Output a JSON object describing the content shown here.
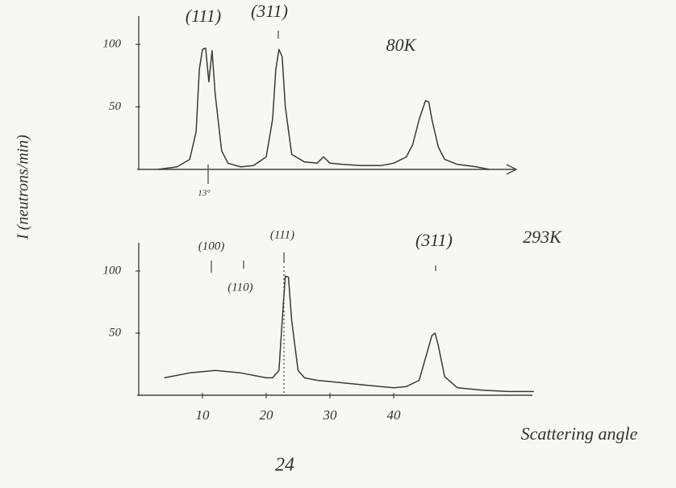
{
  "chart_data": [
    {
      "type": "line",
      "title": "80K",
      "ylabel": "I (neutrons/min)",
      "x": [
        3,
        6,
        8,
        9,
        9.5,
        10,
        10.5,
        11,
        11.5,
        12,
        13,
        14,
        16,
        18,
        20,
        21,
        21.5,
        22,
        22.5,
        23,
        24,
        26,
        28,
        29,
        30,
        32,
        35,
        38,
        40,
        42,
        43,
        44,
        45,
        45.5,
        46,
        47,
        48,
        50,
        53,
        55
      ],
      "values": [
        0,
        2,
        8,
        30,
        80,
        96,
        97,
        70,
        95,
        60,
        15,
        5,
        2,
        3,
        10,
        40,
        80,
        96,
        90,
        50,
        12,
        6,
        5,
        10,
        5,
        4,
        3,
        3,
        5,
        10,
        20,
        40,
        55,
        54,
        40,
        18,
        8,
        4,
        2,
        0
      ],
      "xlim": [
        0,
        60
      ],
      "ylim": [
        0,
        100
      ],
      "yticks": [
        50,
        100
      ],
      "annotations": [
        "(111)",
        "(311)",
        "13°"
      ]
    },
    {
      "type": "line",
      "title": "293K",
      "xlabel": "Scattering angle",
      "x": [
        4,
        8,
        12,
        16,
        20,
        21,
        22,
        22.5,
        23,
        23.5,
        24,
        25,
        26,
        28,
        32,
        36,
        40,
        42,
        44,
        45,
        46,
        46.5,
        47,
        48,
        50,
        54,
        58,
        62
      ],
      "values": [
        14,
        18,
        20,
        18,
        14,
        14,
        20,
        60,
        96,
        95,
        60,
        20,
        14,
        12,
        10,
        8,
        6,
        7,
        12,
        30,
        48,
        50,
        40,
        15,
        6,
        4,
        3,
        3
      ],
      "xlim": [
        0,
        60
      ],
      "ylim": [
        0,
        100
      ],
      "xticks": [
        10,
        20,
        30,
        40
      ],
      "yticks": [
        50,
        100
      ],
      "annotations": [
        "(100)",
        "(110)",
        "(111)",
        "(311)",
        "24"
      ]
    }
  ]
}
